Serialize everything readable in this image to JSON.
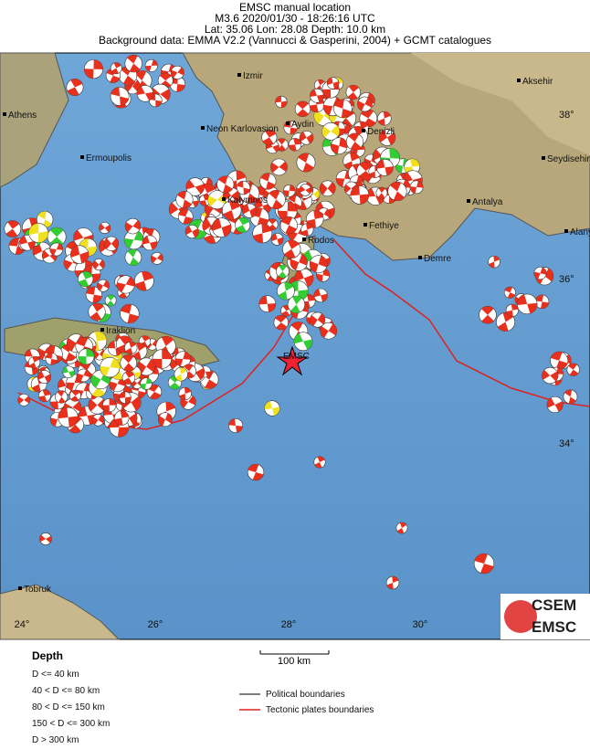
{
  "header": {
    "title": "EMSC manual location",
    "line2": "M3.6  2020/01/30 - 18:26:16 UTC",
    "line3": "Lat: 35.06    Lon: 28.08      Depth:  10.0 km",
    "line4": "Background data: EMMA V2.2 (Vannucci & Gasperini, 2004) + GCMT catalogues"
  },
  "map": {
    "places": [
      "Izmir",
      "Athens",
      "Aksehir",
      "Aydin",
      "Neon Karlovasion",
      "Denizli",
      "Ermoupolis",
      "Seydisehir",
      "Kalymnos",
      "Antalya",
      "Fethiye",
      "Alanya",
      "Rodos",
      "Demre",
      "Iraklion",
      "Tobruk"
    ],
    "lon_labels": [
      "24°",
      "26°",
      "28°",
      "30°"
    ],
    "lat_labels": [
      "38°",
      "36°",
      "34°"
    ],
    "epicenter_label": "EMSC",
    "scale_label": "100 km",
    "logo": [
      "CSEM",
      "EMSC"
    ]
  },
  "legend": {
    "title": "Depth",
    "depth_classes": [
      "D <= 40 km",
      "40 < D <= 80 km",
      "80 < D <= 150 km",
      "150 < D <= 300 km",
      "D > 300 km"
    ],
    "boundaries": [
      "Political boundaries",
      "Tectonic plates boundaries"
    ]
  }
}
